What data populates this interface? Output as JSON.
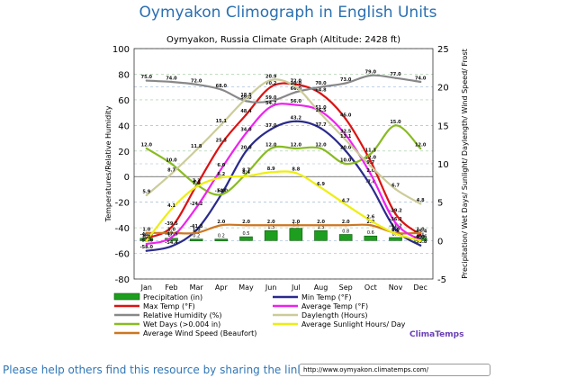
{
  "page": {
    "title": "Oymyakon Climograph in English Units",
    "share_text": "Please help others find this resource by sharing the link:",
    "share_link": "http://www.oymyakon.climatemps.com/"
  },
  "chart_data": {
    "type": "line",
    "title": "Oymyakon, Russia Climate Graph (Altitude: 2428 ft)",
    "ylabel": "Temperatures/Relative Humidity",
    "ylabel_right": "Precipitation/ Wet Days/ Sunlight/ Daylength/ Wind Speed/ Frost",
    "ylim": [
      -80,
      100
    ],
    "ylim_right": [
      -5,
      25
    ],
    "yticks": [
      -80,
      -60,
      -40,
      -20,
      0,
      20,
      40,
      60,
      80,
      100
    ],
    "yticks_right": [
      -5,
      0,
      5,
      10,
      15,
      20,
      25
    ],
    "categories": [
      "Jan",
      "Feb",
      "Mar",
      "Apr",
      "May",
      "Jun",
      "Jul",
      "Aug",
      "Sep",
      "Oct",
      "Nov",
      "Dec"
    ],
    "brand": "ClimaTemps",
    "series": [
      {
        "name": "Precipitation (in)",
        "axis": "right",
        "kind": "bar",
        "color": "#1e9e1e",
        "values": [
          0.3,
          0.3,
          0.2,
          0.2,
          0.5,
          1.3,
          1.6,
          1.3,
          0.8,
          0.6,
          0.4,
          0.3
        ],
        "labels": [
          "0.3",
          "0.3",
          "0.2",
          "0.2",
          "0.5",
          "1.3",
          "1.6",
          "1.3",
          "0.8",
          "0.6",
          "0.4",
          "0.3"
        ]
      },
      {
        "name": "Min Temp (°F)",
        "axis": "left",
        "kind": "line",
        "color": "#2a2a8c",
        "values": [
          -58.0,
          -54.4,
          -41.8,
          -14.0,
          20.0,
          37.0,
          43.2,
          37.7,
          20.0,
          -7.0,
          -41.2,
          -53.8
        ],
        "labels": [
          "-58.0",
          "-54.4",
          "-41.8",
          "-14.0",
          "20.0",
          "37.0",
          "43.2",
          "37.7",
          "20.0",
          "-7.0",
          "-41.2",
          "-53.8"
        ]
      },
      {
        "name": "Max Temp (°F)",
        "axis": "left",
        "kind": "line",
        "color": "#dd1111",
        "values": [
          -48.0,
          -39.5,
          -7.1,
          25.3,
          48.4,
          70.2,
          72.0,
          64.8,
          45.0,
          12.0,
          -29.2,
          -45.4
        ],
        "labels": [
          "-48.0",
          "-39.5",
          "-7.1",
          "25.3",
          "48.4",
          "70.2",
          "72.0",
          "64.8",
          "45.0",
          "12.0",
          "-29.2",
          "-45.4"
        ]
      },
      {
        "name": "Relative Humidity (%)",
        "axis": "left",
        "kind": "line",
        "color": "#888888",
        "values": [
          75.0,
          74.0,
          72.0,
          68.0,
          59.0,
          59.0,
          66.0,
          70.0,
          73.0,
          79.0,
          77.0,
          74.0
        ],
        "labels": [
          "75.0",
          "74.0",
          "72.0",
          "68.0",
          "59.0",
          "59.0",
          "66.0",
          "70.0",
          "73.0",
          "79.0",
          "77.0",
          "74.0"
        ]
      },
      {
        "name": "Wet Days (>0.004 in)",
        "axis": "right",
        "kind": "line",
        "color": "#88bb22",
        "values": [
          12.0,
          10.0,
          7.3,
          6.0,
          8.7,
          12.0,
          12.0,
          12.0,
          10.0,
          11.3,
          15.0,
          12.0
        ],
        "labels": [
          "12.0",
          "10.0",
          "7.3",
          "6.0",
          "8.7",
          "12.0",
          "12.0",
          "12.0",
          "10.0",
          "11.3",
          "15.0",
          "12.0"
        ]
      },
      {
        "name": "Average Wind Speed (Beaufort)",
        "axis": "right",
        "kind": "line",
        "color": "#cc7722",
        "values": [
          1.0,
          1.0,
          1.0,
          2.0,
          2.0,
          2.0,
          2.0,
          2.0,
          2.0,
          2.0,
          1.0,
          1.0
        ],
        "labels": [
          "1.0",
          "1.0",
          "1.0",
          "2.0",
          "2.0",
          "2.0",
          "2.0",
          "2.0",
          "2.0",
          "2.0",
          "1.0",
          "1.0"
        ]
      },
      {
        "name": "Average Temp (°F)",
        "axis": "left",
        "kind": "line",
        "color": "#ee22ee",
        "values": [
          -52.6,
          -47.5,
          -24.2,
          6.0,
          34.0,
          54.7,
          56.0,
          51.0,
          32.5,
          2.0,
          -36.2,
          -49.6
        ],
        "labels": [
          "-52.6",
          "-47.5",
          "-24.2",
          "6.0",
          "34.0",
          "54.7",
          "56.0",
          "51.0",
          "32.5",
          "2.0",
          "-36.2",
          "-49.6"
        ]
      },
      {
        "name": "Daylength (Hours)",
        "axis": "right",
        "kind": "line",
        "color": "#cccc99",
        "values": [
          5.9,
          8.7,
          11.8,
          15.1,
          18.5,
          20.9,
          20.0,
          16.5,
          13.1,
          9.7,
          6.7,
          4.8
        ],
        "labels": [
          "5.9",
          "8.7",
          "11.8",
          "15.1",
          "18.5",
          "20.9",
          "20.0",
          "16.5",
          "13.1",
          "9.7",
          "6.7",
          "4.8"
        ]
      },
      {
        "name": "Average Sunlight Hours/ Day",
        "axis": "right",
        "kind": "line",
        "color": "#eeee11",
        "values": [
          0.0,
          4.1,
          7.0,
          8.2,
          8.4,
          8.9,
          8.8,
          6.9,
          4.7,
          2.6,
          0.9,
          0.0
        ],
        "labels": [
          "0.0",
          "4.1",
          "7.0",
          "8.2",
          "8.4",
          "8.9",
          "8.8",
          "6.9",
          "4.7",
          "2.6",
          "0.9",
          "0.0"
        ]
      }
    ],
    "legend": [
      {
        "name": "Precipitation (in)",
        "style": "bar",
        "color": "#1e9e1e"
      },
      {
        "name": "Min Temp (°F)",
        "style": "line",
        "color": "#2a2a8c"
      },
      {
        "name": "Max Temp (°F)",
        "style": "line",
        "color": "#dd1111"
      },
      {
        "name": "Average Temp (°F)",
        "style": "line",
        "color": "#ee22ee"
      },
      {
        "name": "Relative Humidity (%)",
        "style": "line",
        "color": "#888888"
      },
      {
        "name": "Daylength (Hours)",
        "style": "line",
        "color": "#cccc99"
      },
      {
        "name": "Wet Days (>0.004 in)",
        "style": "line",
        "color": "#88bb22"
      },
      {
        "name": "Average Sunlight Hours/ Day",
        "style": "line",
        "color": "#eeee11"
      },
      {
        "name": "Average Wind Speed (Beaufort)",
        "style": "line",
        "color": "#cc7722"
      }
    ],
    "legend_position": "bottom",
    "grid": true
  }
}
